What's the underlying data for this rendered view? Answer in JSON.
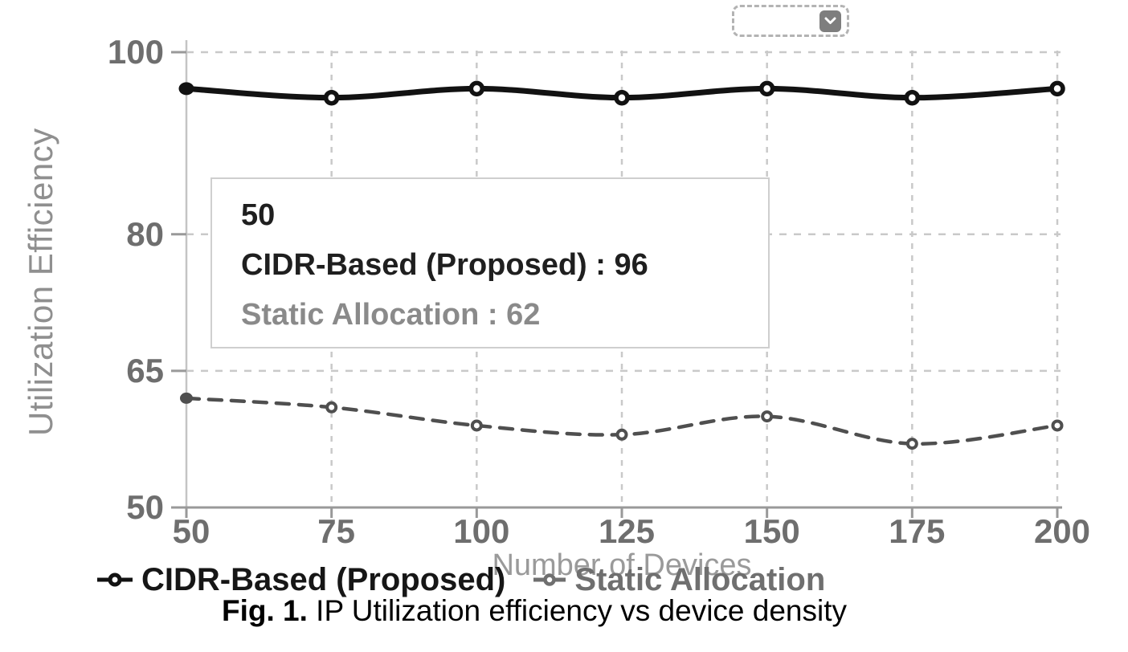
{
  "widget": {
    "type": "collapsed-dropdown",
    "chevron_icon": "chevron-down-icon",
    "border_color": "#b3b3b3",
    "button_color": "#7e7e7e"
  },
  "tooltip": {
    "title": "50",
    "entries": [
      {
        "name": "CIDR-Based (Proposed)",
        "value": "96",
        "text": "CIDR-Based (Proposed) : 96",
        "color": "#1f1f1f"
      },
      {
        "name": "Static Allocation",
        "value": "62",
        "text": "Static Allocation : 62",
        "color": "#8a8a8a"
      }
    ]
  },
  "legend": {
    "items": [
      {
        "label": "CIDR-Based (Proposed)",
        "color": "#121212"
      },
      {
        "label": "Static Allocation",
        "color": "#6f6f6f"
      }
    ]
  },
  "caption": {
    "label": "Fig. 1.",
    "text": "IP Utilization efficiency vs device density"
  },
  "colors": {
    "grid": "#c9c9c9",
    "y_axis_line": "#c4c4c4",
    "x_axis_line": "#999999",
    "tick_label": "#6e6e6e",
    "axis_title": "#9a9a9a",
    "series_cidr": "#121212",
    "series_static": "#4f4f4f",
    "tooltip_border": "#cfcfcf"
  },
  "chart_data": {
    "type": "line",
    "title": "",
    "xlabel": "Number of Devices",
    "ylabel": "Utilization Efficiency",
    "x": [
      50,
      75,
      100,
      125,
      150,
      175,
      200
    ],
    "x_ticks": [
      50,
      75,
      100,
      125,
      150,
      175,
      200
    ],
    "y_ticks": [
      50,
      65,
      80,
      100
    ],
    "xlim": [
      50,
      200
    ],
    "ylim": [
      50,
      100
    ],
    "grid": "dashed",
    "legend_position": "bottom",
    "tooltip_visible_at_x": 50,
    "series": [
      {
        "name": "CIDR-Based (Proposed)",
        "values": [
          96,
          95,
          96,
          95,
          96,
          95,
          96
        ],
        "color": "#121212",
        "style": "solid",
        "marker": "open-circle",
        "first_marker": "filled-circle"
      },
      {
        "name": "Static Allocation",
        "values": [
          62,
          61,
          59,
          58,
          60,
          57,
          59
        ],
        "color": "#4f4f4f",
        "style": "dashed",
        "marker": "open-circle",
        "first_marker": "filled-circle"
      }
    ]
  }
}
